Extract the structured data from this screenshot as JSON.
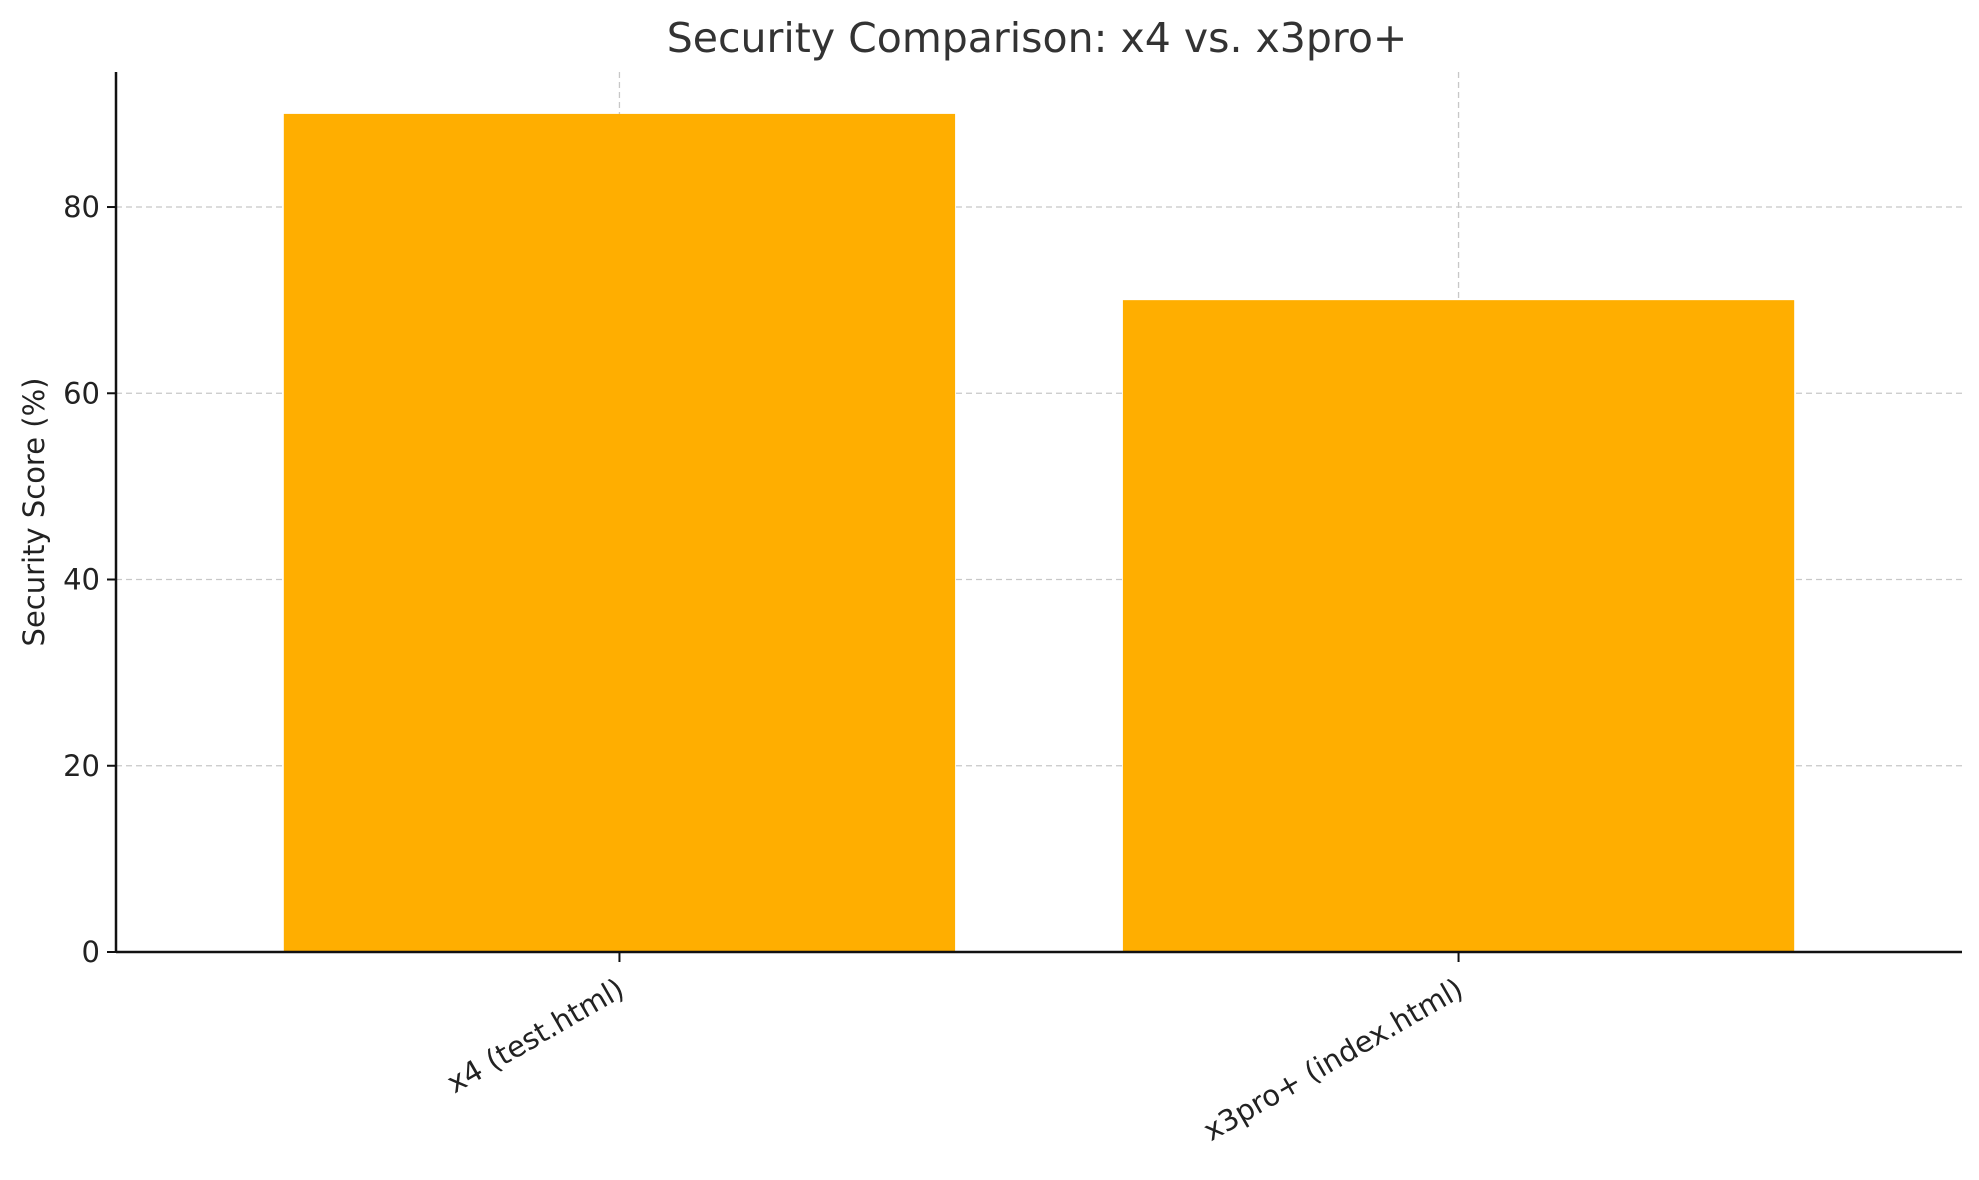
{
  "chart_data": {
    "type": "bar",
    "title": "Security Comparison: x4 vs. x3pro+",
    "xlabel": "",
    "ylabel": "Security Score (%)",
    "categories": [
      "x4 (test.html)",
      "x3pro+ (index.html)"
    ],
    "values": [
      90,
      70
    ],
    "ylim": [
      0,
      94.5
    ],
    "yticks": [
      0,
      20,
      40,
      60,
      80
    ],
    "bar_color": "#FFAE00",
    "grid": true,
    "grid_style": "dashed",
    "xtick_rotation": 30
  }
}
